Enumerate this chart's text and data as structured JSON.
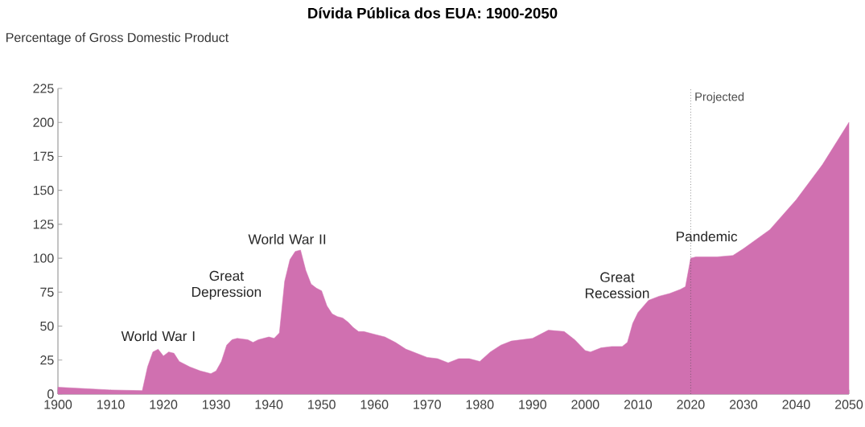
{
  "chart_data": {
    "type": "area",
    "title": "Dívida Pública dos EUA: 1900-2050",
    "ylabel": "Percentage of Gross Domestic Product",
    "x": [
      1900,
      1910,
      1916,
      1917,
      1918,
      1919,
      1920,
      1921,
      1922,
      1923,
      1925,
      1927,
      1929,
      1930,
      1931,
      1932,
      1933,
      1934,
      1936,
      1937,
      1938,
      1940,
      1941,
      1942,
      1943,
      1944,
      1945,
      1946,
      1947,
      1948,
      1949,
      1950,
      1951,
      1952,
      1953,
      1954,
      1955,
      1956,
      1957,
      1958,
      1960,
      1962,
      1964,
      1966,
      1968,
      1970,
      1972,
      1974,
      1976,
      1978,
      1980,
      1982,
      1984,
      1986,
      1988,
      1990,
      1993,
      1996,
      1998,
      2000,
      2001,
      2003,
      2005,
      2007,
      2008,
      2009,
      2010,
      2012,
      2014,
      2016,
      2018,
      2019,
      2020,
      2021,
      2025,
      2028,
      2030,
      2035,
      2040,
      2045,
      2050
    ],
    "values": [
      5,
      3,
      2.5,
      20,
      31,
      33,
      28,
      31,
      30,
      24,
      20,
      17,
      15,
      17,
      24,
      36,
      40,
      41,
      40,
      38,
      40,
      42,
      41,
      45,
      83,
      99,
      105,
      106,
      91,
      81,
      78,
      76,
      65,
      59,
      57,
      56,
      53,
      49,
      46,
      46,
      44,
      42,
      38,
      33,
      30,
      27,
      26,
      23,
      26,
      26,
      24,
      31,
      36,
      39,
      40,
      41,
      47,
      46,
      40,
      32,
      31,
      34,
      35,
      35,
      38,
      52,
      60,
      69,
      72,
      74,
      77,
      79,
      100,
      101,
      101,
      102,
      107,
      121,
      143,
      169,
      200
    ],
    "color": "#d070b0",
    "xlim": [
      1900,
      2050
    ],
    "xticks": [
      1900,
      1910,
      1920,
      1930,
      1940,
      1950,
      1960,
      1970,
      1980,
      1990,
      2000,
      2010,
      2020,
      2030,
      2040,
      2050
    ],
    "ylim": [
      0,
      225
    ],
    "yticks": [
      0,
      25,
      50,
      75,
      100,
      125,
      150,
      175,
      200,
      225
    ],
    "grid": false,
    "ref_lines": [
      {
        "axis": "x",
        "value": 2020,
        "label": "Projected",
        "line_style": "dotted"
      }
    ],
    "annotations": [
      "World War I",
      "Great Depression",
      "World War II",
      "Great Recession",
      "Pandemic"
    ]
  }
}
